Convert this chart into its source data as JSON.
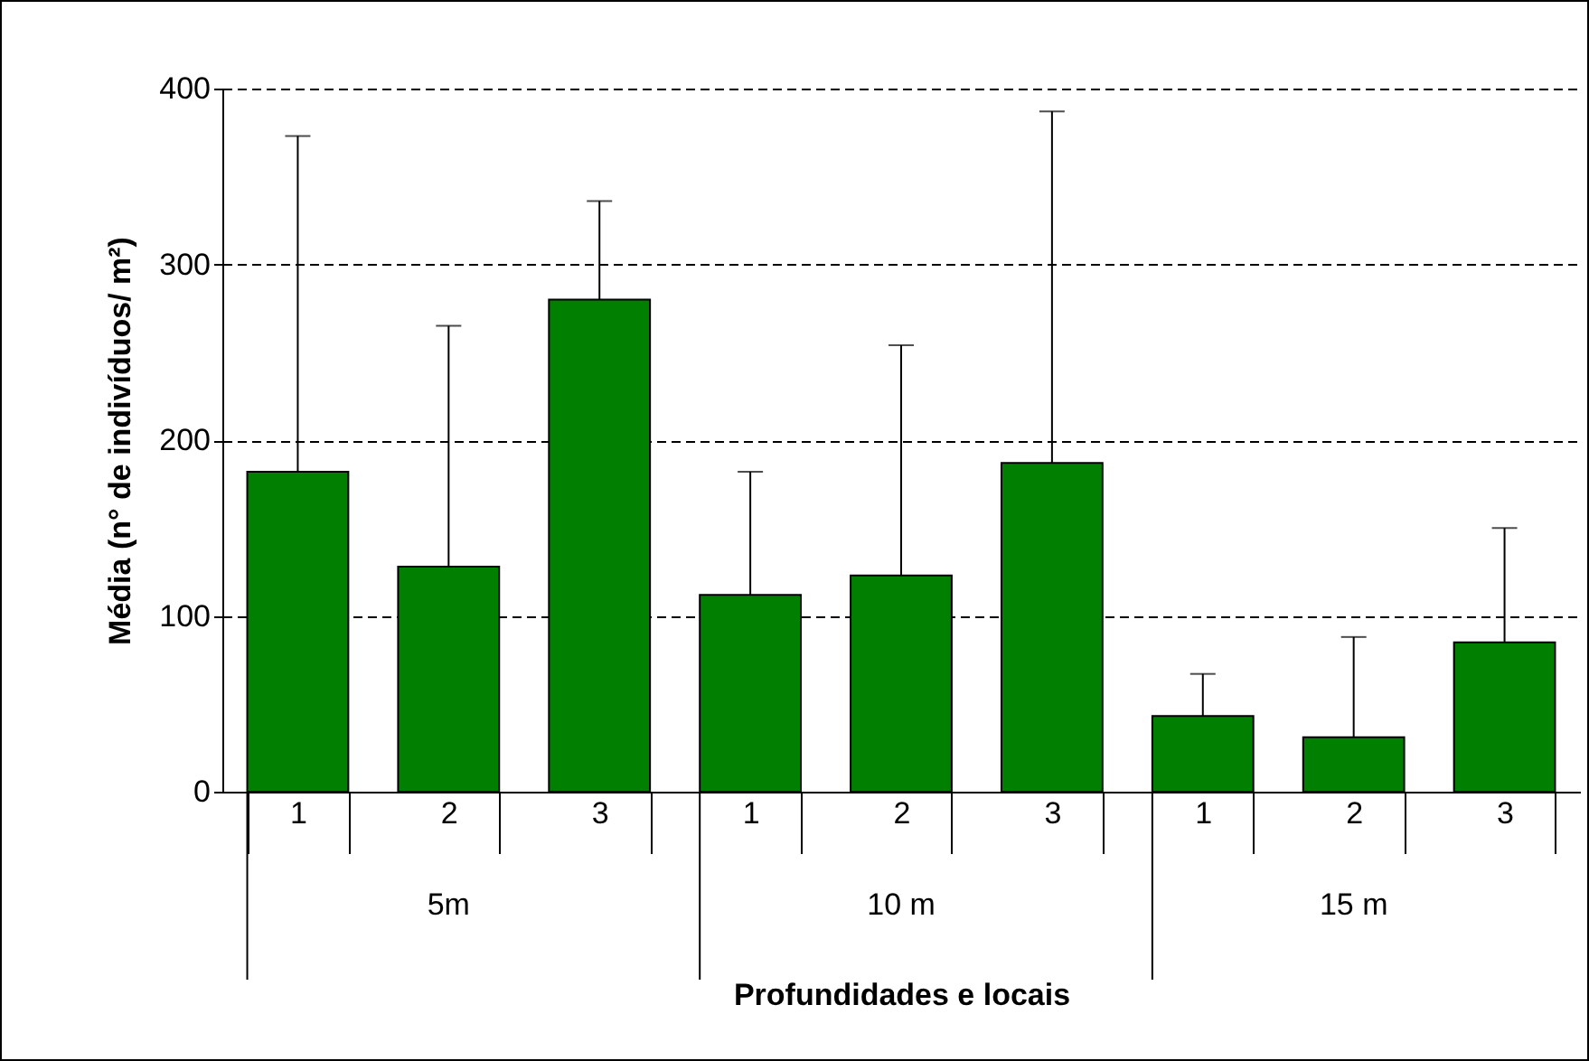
{
  "chart_data": {
    "type": "bar",
    "xlabel": "Profundidades e locais",
    "ylabel": "Média (n° de indivíduos/ m²)",
    "categories": [
      "1",
      "2",
      "3",
      "1",
      "2",
      "3",
      "1",
      "2",
      "3"
    ],
    "values": [
      182,
      128,
      280,
      112,
      123,
      187,
      43,
      31,
      85
    ],
    "errors": [
      [
        182,
        373
      ],
      [
        128,
        265
      ],
      [
        280,
        336
      ],
      [
        112,
        182
      ],
      [
        123,
        254
      ],
      [
        187,
        387
      ],
      [
        43,
        67
      ],
      [
        31,
        88
      ],
      [
        85,
        150
      ]
    ],
    "color": "#007f00",
    "annotations": [
      "5m",
      "10 m",
      "15 m"
    ],
    "ylim": [
      0,
      400
    ],
    "yticks": [
      0,
      100,
      200,
      300,
      400
    ],
    "grid": "y"
  }
}
